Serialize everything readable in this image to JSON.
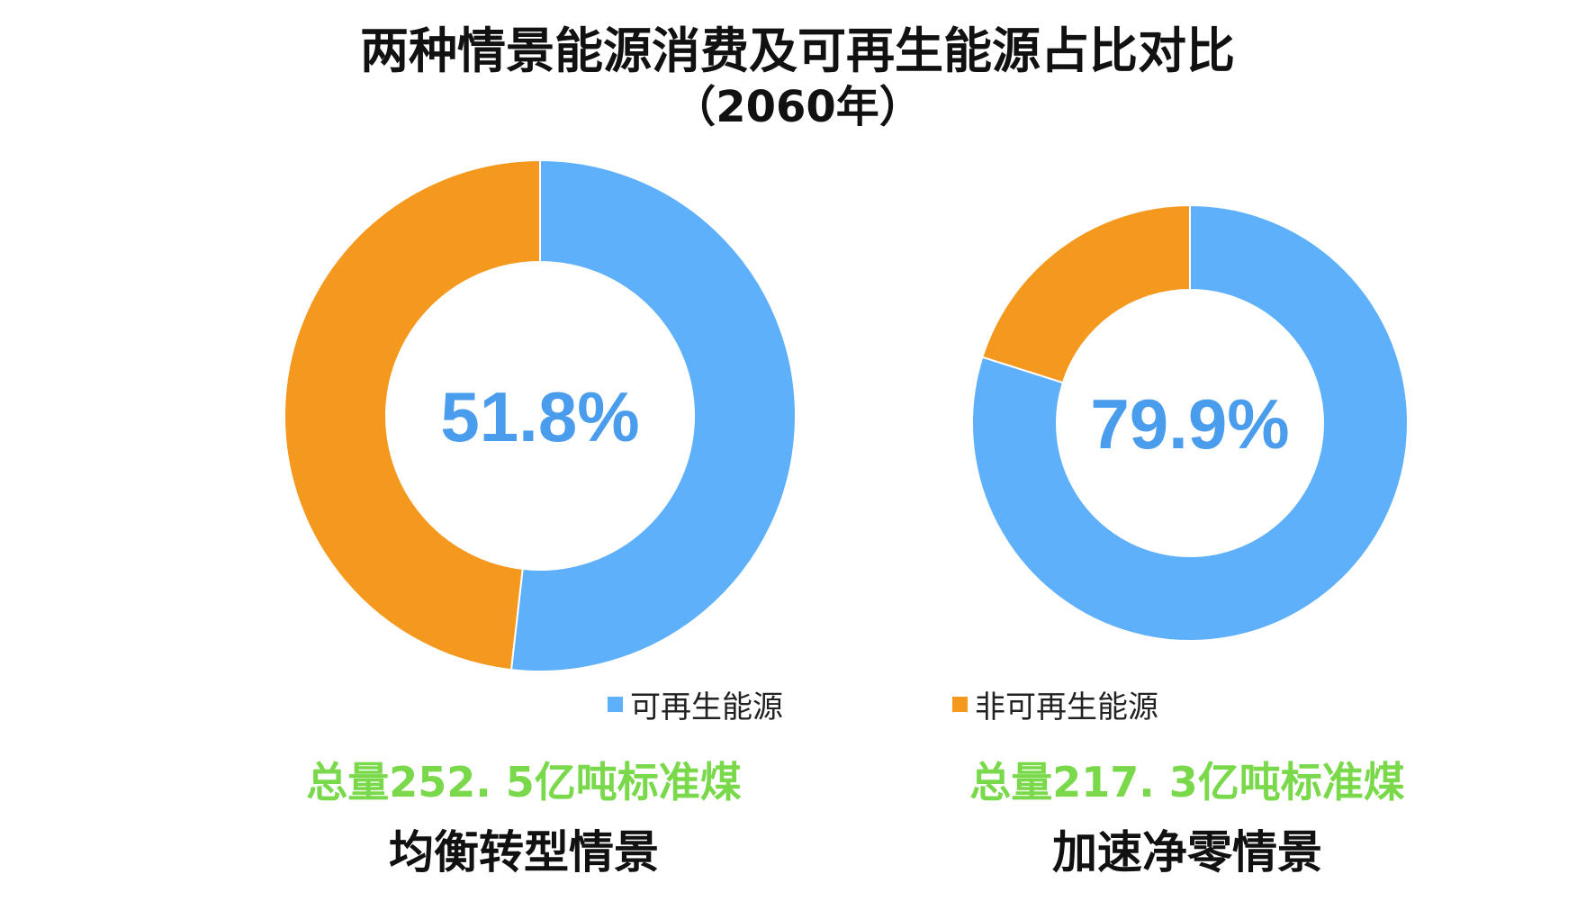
{
  "title": {
    "line1": "两种情景能源消费及可再生能源占比对比",
    "line2": "（2060年）"
  },
  "colors": {
    "renewable": "#5EB0FB",
    "non_renewable": "#F5981E",
    "total_text": "#7AD94A",
    "center_text": "#4A9CEC"
  },
  "chart_data": [
    {
      "type": "pie",
      "variant": "donut",
      "labels": [
        "可再生能源",
        "非可再生能源"
      ],
      "values": [
        51.8,
        48.2
      ],
      "unit": "%",
      "center_label": "51.8%",
      "total": "总量252. 5亿吨标准煤",
      "scenario": "均衡转型情景"
    },
    {
      "type": "pie",
      "variant": "donut",
      "labels": [
        "可再生能源",
        "非可再生能源"
      ],
      "values": [
        79.9,
        20.1
      ],
      "unit": "%",
      "center_label": "79.9%",
      "total": "总量217. 3亿吨标准煤",
      "scenario": "加速净零情景"
    }
  ],
  "legend": [
    {
      "label": "可再生能源"
    },
    {
      "label": "非可再生能源"
    }
  ]
}
